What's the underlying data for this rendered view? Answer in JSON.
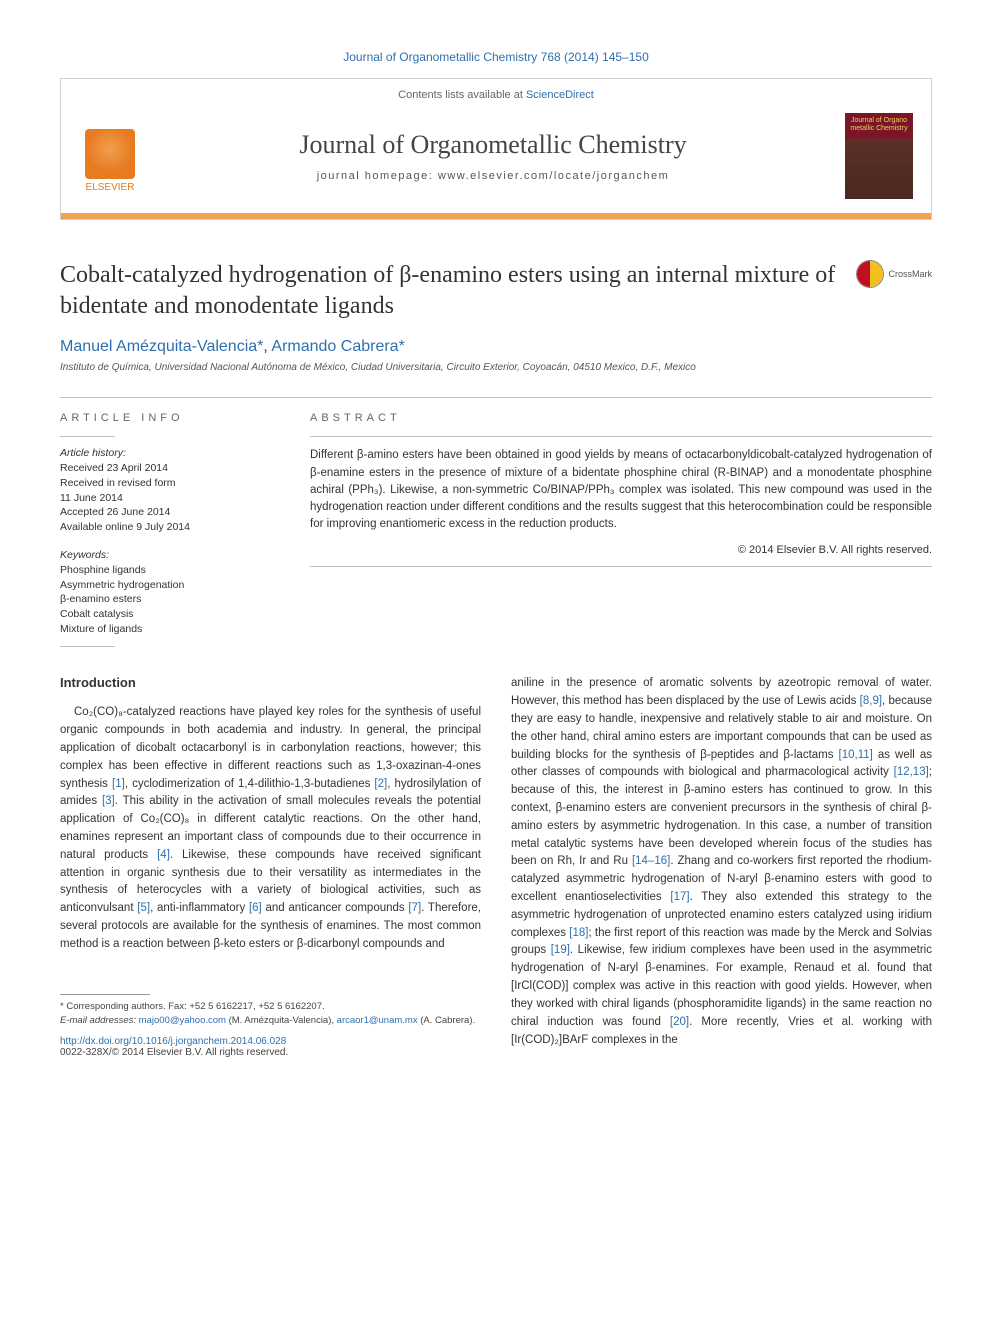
{
  "header": {
    "journal_ref": "Journal of Organometallic Chemistry 768 (2014) 145–150",
    "contents_prefix": "Contents lists available at ",
    "contents_link": "ScienceDirect",
    "journal_name": "Journal of Organometallic Chemistry",
    "homepage_label": "journal homepage: ",
    "homepage_url": "www.elsevier.com/locate/jorganchem",
    "publisher": "ELSEVIER",
    "cover_text": "Journal of Organo metallic Chemistry"
  },
  "article": {
    "title": "Cobalt-catalyzed hydrogenation of β-enamino esters using an internal mixture of bidentate and monodentate ligands",
    "crossmark_label": "CrossMark",
    "author1": "Manuel Amézquita-Valencia",
    "author2": "Armando Cabrera",
    "affiliation": "Instituto de Química, Universidad Nacional Autónoma de México, Ciudad Universitaria, Circuito Exterior, Coyoacán, 04510 Mexico, D.F., Mexico"
  },
  "info": {
    "heading": "article info",
    "history_label": "Article history:",
    "received": "Received 23 April 2014",
    "revised1": "Received in revised form",
    "revised2": "11 June 2014",
    "accepted": "Accepted 26 June 2014",
    "online": "Available online 9 July 2014",
    "keywords_label": "Keywords:",
    "kw1": "Phosphine ligands",
    "kw2": "Asymmetric hydrogenation",
    "kw3": "β-enamino esters",
    "kw4": "Cobalt catalysis",
    "kw5": "Mixture of ligands"
  },
  "abstract": {
    "heading": "abstract",
    "text": "Different β-amino esters have been obtained in good yields by means of octacarbonyldicobalt-catalyzed hydrogenation of β-enamine esters in the presence of mixture of a bidentate phosphine chiral (R-BINAP) and a monodentate phosphine achiral (PPh₃). Likewise, a non-symmetric Co/BINAP/PPh₃ complex was isolated. This new compound was used in the hydrogenation reaction under different conditions and the results suggest that this heterocombination could be responsible for improving enantiomeric excess in the reduction products.",
    "copyright": "© 2014 Elsevier B.V. All rights reserved."
  },
  "body": {
    "section_title": "Introduction",
    "col1": "Co₂(CO)₈-catalyzed reactions have played key roles for the synthesis of useful organic compounds in both academia and industry. In general, the principal application of dicobalt octacarbonyl is in carbonylation reactions, however; this complex has been effective in different reactions such as 1,3-oxazinan-4-ones synthesis [1], cyclodimerization of 1,4-dilithio-1,3-butadienes [2], hydrosilylation of amides [3]. This ability in the activation of small molecules reveals the potential application of Co₂(CO)₈ in different catalytic reactions. On the other hand, enamines represent an important class of compounds due to their occurrence in natural products [4]. Likewise, these compounds have received significant attention in organic synthesis due to their versatility as intermediates in the synthesis of heterocycles with a variety of biological activities, such as anticonvulsant [5], anti-inflammatory [6] and anticancer compounds [7]. Therefore, several protocols are available for the synthesis of enamines. The most common method is a reaction between β-keto esters or β-dicarbonyl compounds and",
    "col2": "aniline in the presence of aromatic solvents by azeotropic removal of water. However, this method has been displaced by the use of Lewis acids [8,9], because they are easy to handle, inexpensive and relatively stable to air and moisture. On the other hand, chiral amino esters are important compounds that can be used as building blocks for the synthesis of β-peptides and β-lactams [10,11] as well as other classes of compounds with biological and pharmacological activity [12,13]; because of this, the interest in β-amino esters has continued to grow. In this context, β-enamino esters are convenient precursors in the synthesis of chiral β-amino esters by asymmetric hydrogenation. In this case, a number of transition metal catalytic systems have been developed wherein focus of the studies has been on Rh, Ir and Ru [14–16]. Zhang and co-workers first reported the rhodium-catalyzed asymmetric hydrogenation of N-aryl β-enamino esters with good to excellent enantioselectivities [17]. They also extended this strategy to the asymmetric hydrogenation of unprotected enamino esters catalyzed using iridium complexes [18]; the first report of this reaction was made by the Merck and Solvias groups [19]. Likewise, few iridium complexes have been used in the asymmetric hydrogenation of N-aryl β-enamines. For example, Renaud et al. found that [IrCl(COD)] complex was active in this reaction with good yields. However, when they worked with chiral ligands (phosphoramidite ligands) in the same reaction no chiral induction was found [20]. More recently, Vries et al. working with [Ir(COD)₂]BArF complexes in the"
  },
  "footer": {
    "corr_label": "* Corresponding authors. Fax: +52 5 6162217, +52 5 6162207.",
    "email_label": "E-mail addresses: ",
    "email1": "majo00@yahoo.com",
    "email1_author": " (M. Amézquita-Valencia), ",
    "email2": "arcaor1@unam.mx",
    "email2_author": " (A. Cabrera).",
    "doi": "http://dx.doi.org/10.1016/j.jorganchem.2014.06.028",
    "issn": "0022-328X/© 2014 Elsevier B.V. All rights reserved."
  },
  "style": {
    "link_color": "#2f6fae",
    "accent_color": "#e87a1f",
    "text_color": "#333333"
  }
}
